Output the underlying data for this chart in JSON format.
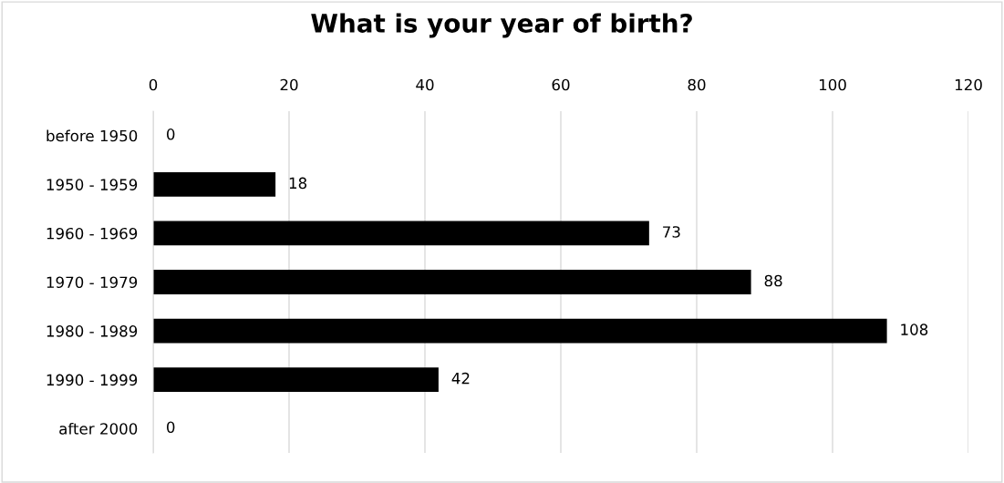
{
  "chart_data": {
    "type": "bar",
    "orientation": "horizontal",
    "title": "What is your year of birth?",
    "categories": [
      "before 1950",
      "1950 - 1959",
      "1960 - 1969",
      "1970 - 1979",
      "1980 - 1989",
      "1990 - 1999",
      "after 2000"
    ],
    "values": [
      0,
      18,
      73,
      88,
      108,
      42,
      0
    ],
    "color": "#000000",
    "xlim": [
      0,
      120
    ],
    "xticks": [
      0,
      20,
      40,
      60,
      80,
      100,
      120
    ],
    "grid": "x",
    "data_labels": true,
    "legend": false
  }
}
